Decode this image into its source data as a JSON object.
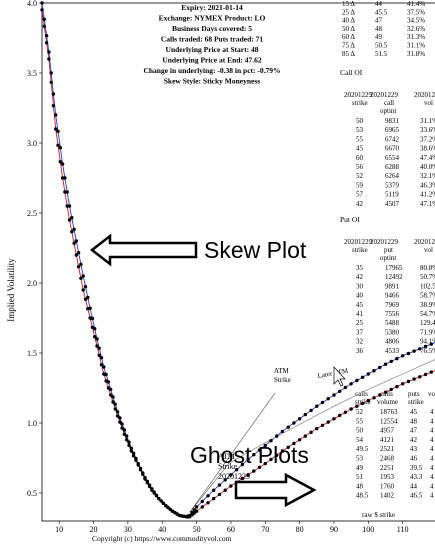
{
  "header": {
    "lines": [
      "Expiry: 2021-01-14",
      "Exchange: NYMEX Product: LO",
      "Business Days covered: 5",
      "Calls traded: 68 Puts traded: 71",
      "Underlying Price at Start: 48",
      "Underlying Price at End: 47.62",
      "Change in underlying: -0.38 in pct: -0.79%",
      "Skew Style: Sticky Moneyness"
    ]
  },
  "delta_table": {
    "rows": [
      [
        "15 Δ",
        "44",
        "41.4%"
      ],
      [
        "25 Δ",
        "45.5",
        "37.5%"
      ],
      [
        "40 Δ",
        "47",
        "34.5%"
      ],
      [
        "50 Δ",
        "48",
        "32.6%"
      ],
      [
        "60 Δ",
        "49",
        "31.3%"
      ],
      [
        "75 Δ",
        "50.5",
        "31.1%"
      ],
      [
        "85 Δ",
        "51.5",
        "31.8%"
      ]
    ]
  },
  "call_oi": {
    "title": "Call OI",
    "headers": [
      [
        "20201229",
        "strike"
      ],
      [
        "20201229",
        "call",
        "optint"
      ],
      [
        "2020122",
        "vol"
      ]
    ],
    "rows": [
      [
        "50",
        "9831",
        "31.1%"
      ],
      [
        "53",
        "6965",
        "33.6%"
      ],
      [
        "55",
        "6742",
        "37.2%"
      ],
      [
        "45",
        "6670",
        "38.6%"
      ],
      [
        "60",
        "6554",
        "47.4%"
      ],
      [
        "56",
        "6288",
        "40.0%"
      ],
      [
        "52",
        "6264",
        "32.1%"
      ],
      [
        "59",
        "5379",
        "46.3%"
      ],
      [
        "57",
        "5119",
        "41.2%"
      ],
      [
        "42",
        "4507",
        "47.1%"
      ]
    ]
  },
  "put_oi": {
    "title": "Put OI",
    "headers": [
      [
        "20201229",
        "strike"
      ],
      [
        "20201229",
        "put",
        "optint"
      ],
      [
        "2020122",
        "vol"
      ]
    ],
    "rows": [
      [
        "35",
        "17965",
        "80.8%"
      ],
      [
        "42",
        "12492",
        "50.7%"
      ],
      [
        "30",
        "9891",
        "102.5%"
      ],
      [
        "40",
        "9466",
        "58.7%"
      ],
      [
        "45",
        "7969",
        "38.9%"
      ],
      [
        "41",
        "7556",
        "54.7%"
      ],
      [
        "25",
        "5488",
        "129.4%"
      ],
      [
        "37",
        "5380",
        "71.9%"
      ],
      [
        "32",
        "4806",
        "94.1%"
      ],
      [
        "36",
        "4533",
        "76.5%"
      ]
    ]
  },
  "volume_table": {
    "headers": [
      [
        "calls",
        "strike"
      ],
      [
        "calls",
        "volume"
      ],
      [
        "puts",
        "strike"
      ],
      [
        "vo"
      ]
    ],
    "rows": [
      [
        "52",
        "18763",
        "45",
        "4"
      ],
      [
        "55",
        "12554",
        "48",
        "4"
      ],
      [
        "50",
        "4957",
        "47",
        "4"
      ],
      [
        "54",
        "4121",
        "42",
        "4"
      ],
      [
        "49.5",
        "2521",
        "43",
        "4"
      ],
      [
        "53",
        "2468",
        "46",
        "4"
      ],
      [
        "49",
        "2251",
        "39.5",
        "4"
      ],
      [
        "51",
        "1953",
        "43.3",
        "4"
      ],
      [
        "48",
        "1760",
        "44",
        "4"
      ],
      [
        "48.5",
        "1402",
        "46.5",
        "4"
      ]
    ],
    "footer": "raw $ strike"
  },
  "annotations": {
    "skew_plot": "Skew Plot",
    "ghost_plots": "Ghost Plots",
    "atm_strike_lower": [
      "ATM",
      "Strike",
      "20201229"
    ],
    "atm_strike_upper": [
      "ATM",
      "Strike"
    ],
    "later_atm_upper": [
      "Later ATM",
      "Strike"
    ],
    "copyright": "Copyright (c) https://www.commodityvol.com"
  },
  "colors": {
    "start_series": "#d81b1b",
    "end_series": "#1f3fd6",
    "ghost_series": "#9a9a9a",
    "markers": "#000000",
    "arrow": "#000000"
  },
  "chart_data": {
    "type": "line",
    "ylabel": "Implied Volatility",
    "xlabel": "",
    "xlim": [
      5,
      120
    ],
    "ylim": [
      0.3,
      4.0
    ],
    "xticks": [
      10,
      20,
      30,
      40,
      50,
      60,
      70,
      80,
      90,
      100,
      110
    ],
    "yticks": [
      0.5,
      1.0,
      1.5,
      2.0,
      2.5,
      3.0,
      3.5,
      4.0
    ],
    "ytick_labels": [
      "0.5",
      "1.0",
      "1.5",
      "2.0",
      "2.5",
      "3.0",
      "3.5",
      "4.0"
    ],
    "series": [
      {
        "role": "start_curve",
        "x": [
          5,
          7,
          9,
          11,
          13,
          15,
          17,
          19,
          21,
          23,
          25,
          27,
          29,
          31,
          33,
          35,
          37,
          39,
          41,
          43,
          45,
          47,
          48,
          50,
          55,
          60,
          65,
          70,
          75,
          80,
          85,
          90,
          95,
          100,
          105,
          110,
          115,
          120
        ],
        "y": [
          3.95,
          3.6,
          3.1,
          2.75,
          2.45,
          2.2,
          1.95,
          1.75,
          1.55,
          1.35,
          1.2,
          1.05,
          0.92,
          0.8,
          0.7,
          0.6,
          0.52,
          0.46,
          0.41,
          0.37,
          0.34,
          0.33,
          0.33,
          0.37,
          0.46,
          0.55,
          0.63,
          0.71,
          0.8,
          0.88,
          0.96,
          1.03,
          1.1,
          1.16,
          1.22,
          1.28,
          1.33,
          1.38
        ]
      },
      {
        "role": "end_curve",
        "x": [
          5,
          7,
          9,
          11,
          13,
          15,
          17,
          19,
          21,
          23,
          25,
          27,
          29,
          31,
          33,
          35,
          37,
          39,
          41,
          43,
          45,
          47,
          48,
          50,
          55,
          60,
          65,
          70,
          75,
          80,
          85,
          90,
          95,
          100,
          105,
          110,
          115,
          120
        ],
        "y": [
          4.0,
          3.65,
          3.2,
          2.85,
          2.55,
          2.3,
          2.05,
          1.82,
          1.6,
          1.4,
          1.24,
          1.08,
          0.95,
          0.82,
          0.71,
          0.61,
          0.53,
          0.46,
          0.41,
          0.37,
          0.34,
          0.33,
          0.34,
          0.4,
          0.52,
          0.63,
          0.74,
          0.84,
          0.94,
          1.03,
          1.12,
          1.2,
          1.28,
          1.35,
          1.42,
          1.48,
          1.53,
          1.58
        ]
      },
      {
        "role": "ghost_curve",
        "x": [
          60,
          70,
          80,
          90,
          100,
          110,
          120
        ],
        "y": [
          0.72,
          0.86,
          0.99,
          1.12,
          1.24,
          1.35,
          1.46
        ]
      }
    ]
  }
}
